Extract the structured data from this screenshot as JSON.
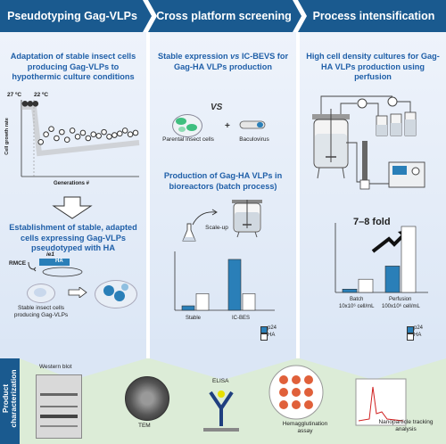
{
  "headers": {
    "col1": "Pseudotyping Gag-VLPs",
    "col2": "Cross platform screening",
    "col3": "Process intensification"
  },
  "col1": {
    "title": "Adaptation of stable insect cells producing Gag-VLPs to hypothermic culture conditions",
    "temp1": "27 ºC",
    "temp2": "22 ºC",
    "ylabel": "Cell growth rate",
    "xlabel": "Generations #",
    "section2_title": "Establishment of stable, adapted cells expressing Gag-VLPs pseudotyped with HA",
    "rmce": "RMCE",
    "ie1": "ie1",
    "ha": "HA",
    "stable_cells": "Stable insect cells producing Gag-VLPs"
  },
  "col2": {
    "title": "Stable expression vs IC-BEVS for Gag-HA VLPs production",
    "vs": "VS",
    "parental": "Parental insect cells",
    "plus": "+",
    "baculovirus": "Baculovirus",
    "section2_title": "Production of Gag-HA VLPs in bioreactors (batch process)",
    "scaleup": "Scale-up",
    "cat1": "Stable",
    "cat2": "IC-BES",
    "legend_p24": "p24",
    "legend_ha": "HA"
  },
  "col3": {
    "title": "High cell density cultures for Gag-HA VLPs production using perfusion",
    "fold": "7–8 fold",
    "cat1": "Batch",
    "cat1_sub": "10x10⁶ cell/mL",
    "cat2": "Perfusion",
    "cat2_sub": "100x10⁶ cell/mL",
    "legend_p24": "p24",
    "legend_ha": "HA"
  },
  "bottom": {
    "label": "Product characterization",
    "western": "Western blot",
    "tem": "TEM",
    "elisa": "ELISA",
    "hemag": "Hemagglutination assay",
    "nano": "Nanoparticle tracking analysis"
  },
  "colors": {
    "header": "#1a5a8f",
    "accent_blue": "#1f5fa8",
    "bar_p24": "#2a7fb8",
    "bar_ha": "#ffffff",
    "bottom_bg": "#dcecd7"
  },
  "chart_data": [
    {
      "type": "scatter",
      "xlabel": "Generations #",
      "ylabel": "Cell growth rate",
      "values": [
        0.95,
        0.95,
        0.95,
        0.45,
        0.55,
        0.62,
        0.5,
        0.58,
        0.48,
        0.6,
        0.52,
        0.57,
        0.5,
        0.55,
        0.53,
        0.58,
        0.52,
        0.54,
        0.56,
        0.6,
        0.55,
        0.57
      ]
    },
    {
      "type": "bar",
      "categories": [
        "Stable",
        "IC-BES"
      ],
      "series": [
        {
          "name": "p24",
          "values": [
            0.08,
            0.92
          ]
        },
        {
          "name": "HA",
          "values": [
            0.3,
            0.3
          ]
        }
      ]
    },
    {
      "type": "bar",
      "categories": [
        "Batch",
        "Perfusion"
      ],
      "series": [
        {
          "name": "p24",
          "values": [
            0.05,
            0.4
          ]
        },
        {
          "name": "HA",
          "values": [
            0.2,
            1.0
          ]
        }
      ]
    }
  ]
}
